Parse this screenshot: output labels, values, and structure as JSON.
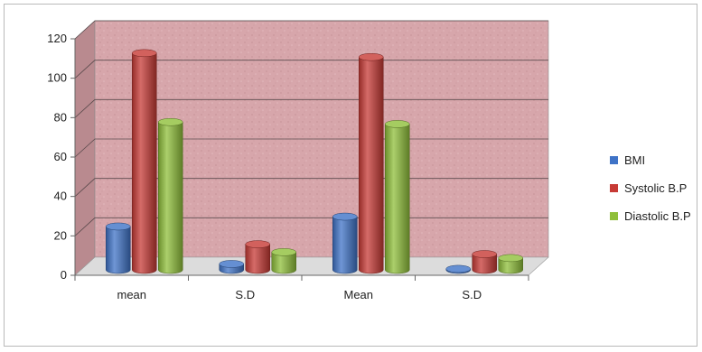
{
  "chart_data": {
    "type": "bar",
    "categories": [
      "mean",
      "S.D",
      "Mean",
      "S.D"
    ],
    "series": [
      {
        "name": "BMI",
        "color": "#3f73c7",
        "values": [
          22,
          3,
          27,
          0.5
        ]
      },
      {
        "name": "Systolic B.P",
        "color": "#c73a35",
        "values": [
          110,
          13,
          108,
          8
        ]
      },
      {
        "name": "Diastolic B.P",
        "color": "#8fbf3a",
        "values": [
          75,
          9,
          74,
          6
        ]
      }
    ],
    "ylim": [
      0,
      120
    ],
    "yticks": [
      0,
      20,
      40,
      60,
      80,
      100,
      120
    ],
    "grid": true,
    "legend_position": "right",
    "style": "3d-cylinder",
    "wall_color": "#d9a8ad",
    "floor_color": "#dcdcdc"
  }
}
